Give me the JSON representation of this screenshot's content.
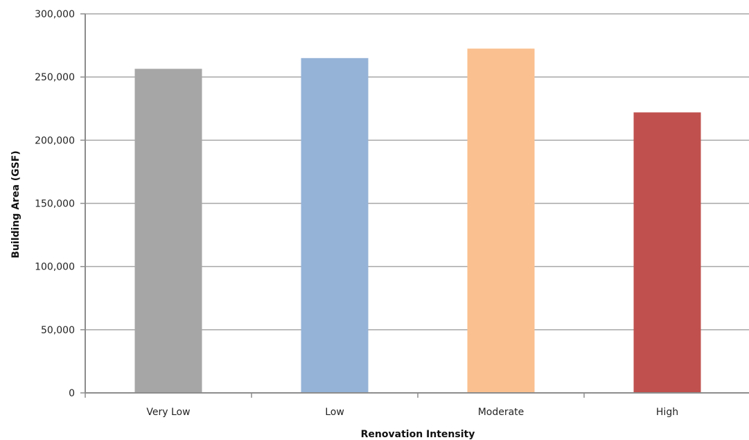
{
  "chart_data": {
    "type": "bar",
    "categories": [
      "Very Low",
      "Low",
      "Moderate",
      "High"
    ],
    "values": [
      256500,
      265000,
      272500,
      222000
    ],
    "colors": [
      "#a6a6a6",
      "#95b3d7",
      "#fac090",
      "#c0504d"
    ],
    "xlabel": "Renovation Intensity",
    "ylabel": "Building Area (GSF)",
    "ylim": [
      0,
      300000
    ],
    "ytick_step": 50000,
    "ytick_labels": [
      "0",
      "50,000",
      "100,000",
      "150,000",
      "200,000",
      "250,000",
      "300,000"
    ],
    "grid": true,
    "legend": "none"
  }
}
